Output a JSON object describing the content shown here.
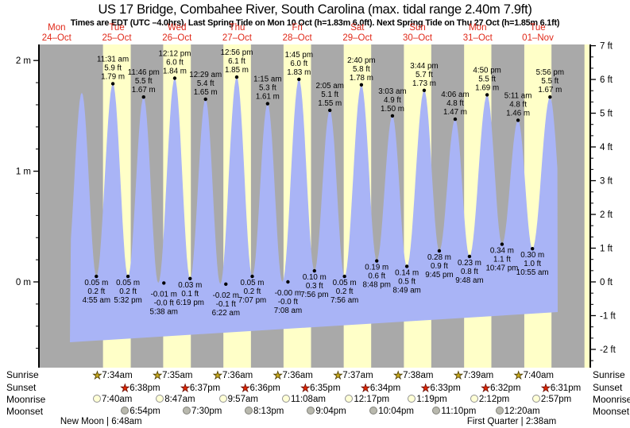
{
  "chart_data": {
    "type": "area",
    "title": "US 17 Bridge, Combahee River, South Carolina (max. tidal range 2.40m 7.9ft)",
    "subtitle": "Times are EDT (UTC –4.0hrs). Last Spring Tide on Mon 10 Oct (h=1.83m 6.0ft). Next Spring Tide on Thu 27 Oct (h=1.85m 6.1ft)",
    "ylabel_left": "m",
    "ylabel_right": "ft",
    "left_axis_ticks": [
      "2 m",
      "1 m",
      "0 m"
    ],
    "right_axis_ticks": [
      "7 ft",
      "6 ft",
      "5 ft",
      "4 ft",
      "3 ft",
      "2 ft",
      "1 ft",
      "0 ft",
      "-1 ft",
      "-2 ft"
    ],
    "axis_ranges": {
      "left_m": [
        0,
        2
      ],
      "right_ft": [
        -2,
        7
      ]
    },
    "grid": false,
    "days": [
      {
        "dow": "Mon",
        "date": "24–Oct"
      },
      {
        "dow": "Tue",
        "date": "25–Oct"
      },
      {
        "dow": "Wed",
        "date": "26–Oct"
      },
      {
        "dow": "Thu",
        "date": "27–Oct"
      },
      {
        "dow": "Fri",
        "date": "28–Oct"
      },
      {
        "dow": "Sat",
        "date": "29–Oct"
      },
      {
        "dow": "Sun",
        "date": "30–Oct"
      },
      {
        "dow": "Mon",
        "date": "31–Oct"
      },
      {
        "dow": "Tue",
        "date": "01–Nov"
      }
    ],
    "high_tides": [
      {
        "day": 1,
        "time": "11:31 am",
        "ft": "5.9 ft",
        "m": "1.79 m"
      },
      {
        "day": 1,
        "time": "11:46 pm",
        "ft": "5.5 ft",
        "m": "1.67 m"
      },
      {
        "day": 2,
        "time": "12:12 pm",
        "ft": "6.0 ft",
        "m": "1.84 m"
      },
      {
        "day": 3,
        "time": "12:29 am",
        "ft": "5.4 ft",
        "m": "1.65 m"
      },
      {
        "day": 3,
        "time": "12:56 pm",
        "ft": "6.1 ft",
        "m": "1.85 m"
      },
      {
        "day": 4,
        "time": "1:15 am",
        "ft": "5.3 ft",
        "m": "1.61 m"
      },
      {
        "day": 4,
        "time": "1:45 pm",
        "ft": "6.0 ft",
        "m": "1.83 m"
      },
      {
        "day": 5,
        "time": "2:05 am",
        "ft": "5.1 ft",
        "m": "1.55 m"
      },
      {
        "day": 5,
        "time": "2:40 pm",
        "ft": "5.8 ft",
        "m": "1.78 m"
      },
      {
        "day": 6,
        "time": "3:03 am",
        "ft": "4.9 ft",
        "m": "1.50 m"
      },
      {
        "day": 6,
        "time": "3:44 pm",
        "ft": "5.7 ft",
        "m": "1.73 m"
      },
      {
        "day": 7,
        "time": "4:06 am",
        "ft": "4.8 ft",
        "m": "1.47 m"
      },
      {
        "day": 7,
        "time": "4:50 pm",
        "ft": "5.5 ft",
        "m": "1.69 m"
      },
      {
        "day": 8,
        "time": "5:11 am",
        "ft": "4.8 ft",
        "m": "1.46 m"
      },
      {
        "day": 8,
        "time": "5:56 pm",
        "ft": "5.5 ft",
        "m": "1.67 m"
      }
    ],
    "low_tides": [
      {
        "day": 1,
        "m": "0.05 m",
        "ft": "0.2 ft",
        "time": "4:55 am"
      },
      {
        "day": 1,
        "m": "0.05 m",
        "ft": "0.2 ft",
        "time": "5:32 pm"
      },
      {
        "day": 2,
        "m": "-0.01 m",
        "ft": "-0.0 ft",
        "time": "5:38 am"
      },
      {
        "day": 2,
        "m": "0.03 m",
        "ft": "0.1 ft",
        "time": "6:19 pm"
      },
      {
        "day": 3,
        "m": "-0.02 m",
        "ft": "-0.1 ft",
        "time": "6:22 am"
      },
      {
        "day": 3,
        "m": "0.05 m",
        "ft": "0.2 ft",
        "time": "7:07 pm"
      },
      {
        "day": 4,
        "m": "-0.00 m",
        "ft": "-0.0 ft",
        "time": "7:08 am"
      },
      {
        "day": 4,
        "m": "0.10 m",
        "ft": "0.3 ft",
        "time": "7:56 pm"
      },
      {
        "day": 5,
        "m": "0.05 m",
        "ft": "0.2 ft",
        "time": "7:56 am"
      },
      {
        "day": 5,
        "m": "0.19 m",
        "ft": "0.6 ft",
        "time": "8:48 pm"
      },
      {
        "day": 6,
        "m": "0.14 m",
        "ft": "0.5 ft",
        "time": "8:49 am"
      },
      {
        "day": 6,
        "m": "0.28 m",
        "ft": "0.9 ft",
        "time": "9:45 pm"
      },
      {
        "day": 7,
        "m": "0.23 m",
        "ft": "0.8 ft",
        "time": "9:48 am"
      },
      {
        "day": 7,
        "m": "0.34 m",
        "ft": "1.1 ft",
        "time": "10:47 pm"
      },
      {
        "day": 8,
        "m": "0.30 m",
        "ft": "1.0 ft",
        "time": "10:55 am"
      }
    ]
  },
  "almanac": {
    "rows": [
      {
        "label": "Sunrise",
        "icon": "sunrise-star-icon",
        "entries": [
          {
            "day": 1,
            "time": "7:34am"
          },
          {
            "day": 2,
            "time": "7:35am"
          },
          {
            "day": 3,
            "time": "7:36am"
          },
          {
            "day": 4,
            "time": "7:36am"
          },
          {
            "day": 5,
            "time": "7:37am"
          },
          {
            "day": 6,
            "time": "7:38am"
          },
          {
            "day": 7,
            "time": "7:39am"
          },
          {
            "day": 8,
            "time": "7:40am"
          }
        ]
      },
      {
        "label": "Sunset",
        "icon": "sunset-star-icon",
        "entries": [
          {
            "day": 1,
            "time": "6:38pm"
          },
          {
            "day": 2,
            "time": "6:37pm"
          },
          {
            "day": 3,
            "time": "6:36pm"
          },
          {
            "day": 4,
            "time": "6:35pm"
          },
          {
            "day": 5,
            "time": "6:34pm"
          },
          {
            "day": 6,
            "time": "6:33pm"
          },
          {
            "day": 7,
            "time": "6:32pm"
          },
          {
            "day": 8,
            "time": "6:31pm"
          }
        ]
      },
      {
        "label": "Moonrise",
        "icon": "moonrise-circle-icon",
        "entries": [
          {
            "day": 1,
            "time": "7:40am"
          },
          {
            "day": 2,
            "time": "8:47am"
          },
          {
            "day": 3,
            "time": "9:57am"
          },
          {
            "day": 4,
            "time": "11:08am"
          },
          {
            "day": 5,
            "time": "12:17pm"
          },
          {
            "day": 6,
            "time": "1:19pm"
          },
          {
            "day": 7,
            "time": "2:12pm"
          },
          {
            "day": 8,
            "time": "2:57pm"
          }
        ]
      },
      {
        "label": "Moonset",
        "icon": "moonset-circle-icon",
        "entries": [
          {
            "day": 1,
            "time": "6:54pm"
          },
          {
            "day": 2,
            "time": "7:30pm"
          },
          {
            "day": 3,
            "time": "8:13pm"
          },
          {
            "day": 4,
            "time": "9:04pm"
          },
          {
            "day": 5,
            "time": "10:04pm"
          },
          {
            "day": 6,
            "time": "11:10pm"
          },
          {
            "day": 8,
            "time": "12:20am"
          }
        ]
      }
    ]
  },
  "moon_phases": [
    {
      "label": "New Moon",
      "time": "6:48am",
      "day": 1
    },
    {
      "label": "First Quarter",
      "time": "2:38am",
      "day": 8
    }
  ],
  "colors": {
    "night_band": "#a9a9a9",
    "day_band": "#ffffc8",
    "tide_fill": "#a9b4f6",
    "date_label": "#e02818",
    "sunrise_star": "#c7a91c",
    "sunset_star": "#e02800",
    "moonrise_circle": "#ffffd6",
    "moonrise_border": "#909090",
    "moonset_circle": "#b9b9ae",
    "moonset_border": "#7f7f78",
    "axis": "#000000"
  }
}
